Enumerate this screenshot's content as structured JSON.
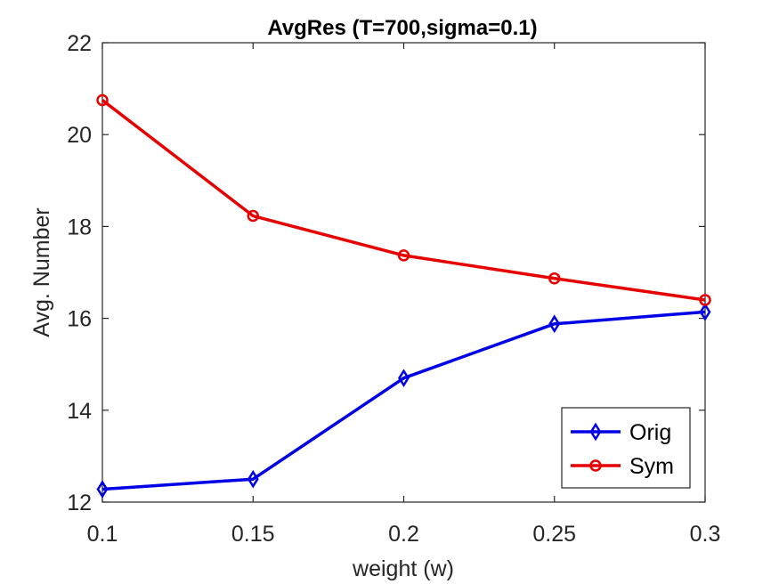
{
  "chart_data": {
    "type": "line",
    "title": "AvgRes (T=700,sigma=0.1)",
    "xlabel": "weight (w)",
    "ylabel": "Avg. Number",
    "x": [
      0.1,
      0.15,
      0.2,
      0.25,
      0.3
    ],
    "x_tick_labels": [
      "0.1",
      "0.15",
      "0.2",
      "0.25",
      "0.3"
    ],
    "y_ticks": [
      12,
      14,
      16,
      18,
      20,
      22
    ],
    "y_tick_labels": [
      "12",
      "14",
      "16",
      "18",
      "20",
      "22"
    ],
    "xlim": [
      0.1,
      0.3
    ],
    "ylim": [
      12,
      22
    ],
    "grid": false,
    "legend_position": "bottom-right",
    "series": [
      {
        "name": "Orig",
        "values": [
          12.28,
          12.5,
          14.7,
          15.88,
          16.14
        ],
        "color": "#0000e6",
        "marker": "diamond"
      },
      {
        "name": "Sym",
        "values": [
          20.75,
          18.23,
          17.37,
          16.87,
          16.4
        ],
        "color": "#e60000",
        "marker": "circle"
      }
    ]
  }
}
